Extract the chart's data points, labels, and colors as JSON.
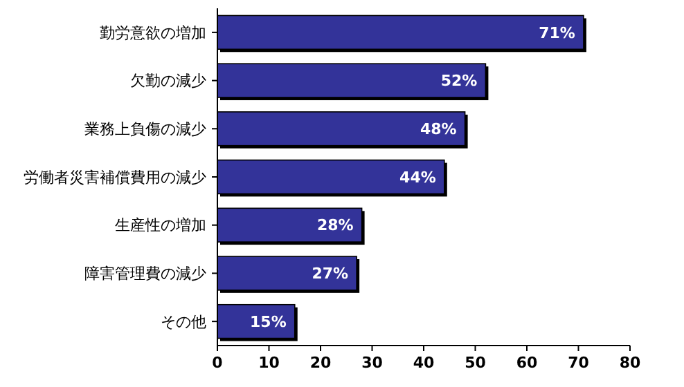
{
  "chart_data": {
    "type": "bar",
    "orientation": "horizontal",
    "categories": [
      "勤労意欲の増加",
      "欠勤の減少",
      "業務上負傷の減少",
      "労働者災害補償費用の減少",
      "生産性の増加",
      "障害管理費の減少",
      "その他"
    ],
    "values": [
      71,
      52,
      48,
      44,
      28,
      27,
      15
    ],
    "value_labels": [
      "71%",
      "52%",
      "48%",
      "44%",
      "28%",
      "27%",
      "15%"
    ],
    "color": "#333399",
    "xlim": [
      0,
      80
    ],
    "xticks": [
      0,
      10,
      20,
      30,
      40,
      50,
      60,
      70,
      80
    ],
    "grid": false
  }
}
